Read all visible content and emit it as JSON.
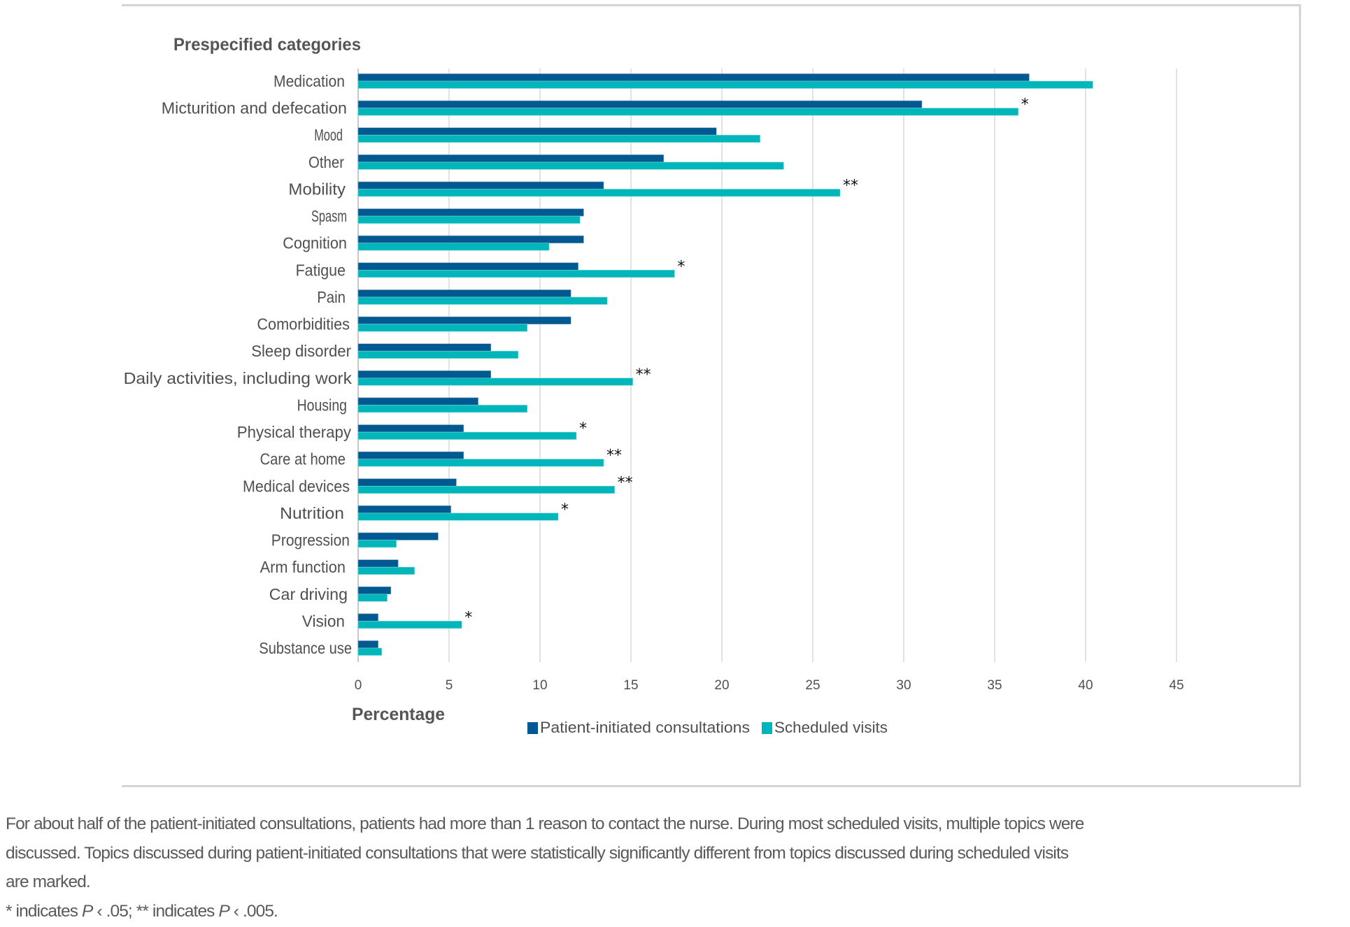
{
  "colors": {
    "patient_initiated": "#005A91",
    "scheduled": "#00B6BA",
    "grid": "#d9d9d9",
    "frame": "#d4d4d4"
  },
  "chart_data": {
    "type": "bar",
    "orientation": "horizontal",
    "title": "Prespecified categories",
    "xlabel": "Percentage",
    "ylabel": "Prespecified categories",
    "xlim": [
      0,
      45
    ],
    "xticks": [
      0,
      5,
      10,
      15,
      20,
      25,
      30,
      35,
      40,
      45
    ],
    "grid": true,
    "legend_position": "bottom-center",
    "categories": [
      "Medication",
      "Micturition and defecation",
      "Mood",
      "Other",
      "Mobility",
      "Spasm",
      "Cognition",
      "Fatigue",
      "Pain",
      "Comorbidities",
      "Sleep disorder",
      "Daily activities, including work",
      "Housing",
      "Physical therapy",
      "Care at home",
      "Medical devices",
      "Nutrition",
      "Progression",
      "Arm function",
      "Car driving",
      "Vision",
      "Substance use"
    ],
    "series": [
      {
        "name": "Patient-initiated consultations",
        "color": "#005A91",
        "values": [
          36.9,
          31.0,
          19.7,
          16.8,
          13.5,
          12.4,
          12.4,
          12.1,
          11.7,
          11.7,
          7.3,
          7.3,
          6.6,
          5.8,
          5.8,
          5.4,
          5.1,
          4.4,
          2.2,
          1.8,
          1.1,
          1.1
        ]
      },
      {
        "name": "Scheduled visits",
        "color": "#00B6BA",
        "values": [
          40.4,
          36.3,
          22.1,
          23.4,
          26.5,
          12.2,
          10.5,
          17.4,
          13.7,
          9.3,
          8.8,
          15.1,
          9.3,
          12.0,
          13.5,
          14.1,
          11.0,
          2.1,
          3.1,
          1.6,
          5.7,
          1.3
        ]
      }
    ],
    "significance": [
      "",
      "*",
      "",
      "",
      "**",
      "",
      "",
      "*",
      "",
      "",
      "",
      "**",
      "",
      "*",
      "**",
      "**",
      "*",
      "",
      "",
      "",
      "*",
      ""
    ]
  },
  "caption": {
    "line1": "For about half of the patient-initiated consultations, patients had more than 1 reason to contact the nurse. During most scheduled visits, multiple topics were",
    "line2": "discussed. Topics discussed during patient-initiated consultations that were statistically significantly different from topics discussed during scheduled visits",
    "line3": "are marked.",
    "footnote_a": "* indicates ",
    "footnote_p1": "P",
    "footnote_b": " ‹ .05; ** indicates ",
    "footnote_p2": "P",
    "footnote_c": " ‹ .005."
  }
}
